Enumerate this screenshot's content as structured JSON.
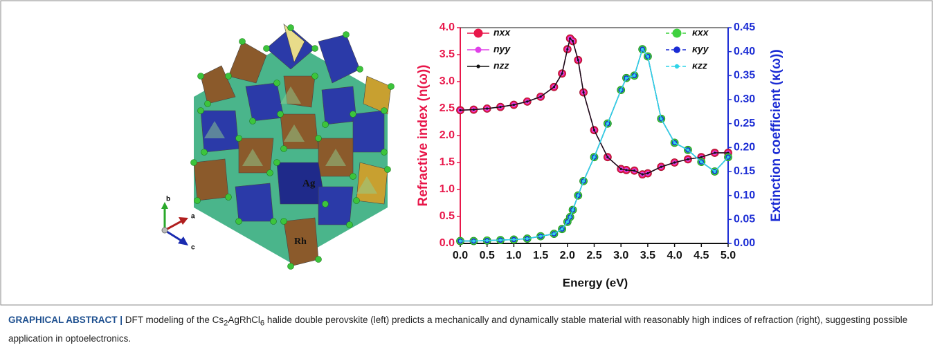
{
  "chart_data": {
    "type": "line",
    "x_label": "Energy (eV)",
    "y_label": "Refractive index (n(ω))",
    "y2_label": "Extinction coefficient (κ(ω))",
    "x": [
      0,
      0.25,
      0.5,
      0.75,
      1,
      1.25,
      1.5,
      1.75,
      1.9,
      2,
      2.05,
      2.1,
      2.2,
      2.3,
      2.5,
      2.75,
      3,
      3.1,
      3.25,
      3.4,
      3.5,
      3.75,
      4,
      4.25,
      4.5,
      4.75,
      5
    ],
    "series": [
      {
        "name": "nxx",
        "color": "#e8174a",
        "values": [
          2.47,
          2.48,
          2.5,
          2.53,
          2.57,
          2.63,
          2.72,
          2.9,
          3.15,
          3.6,
          3.8,
          3.75,
          3.4,
          2.8,
          2.1,
          1.6,
          1.38,
          1.36,
          1.35,
          1.28,
          1.3,
          1.42,
          1.5,
          1.56,
          1.6,
          1.68,
          1.68
        ]
      },
      {
        "name": "nyy",
        "color": "#e040e8",
        "values": [
          2.47,
          2.48,
          2.5,
          2.53,
          2.57,
          2.63,
          2.72,
          2.9,
          3.15,
          3.6,
          3.8,
          3.75,
          3.4,
          2.8,
          2.1,
          1.6,
          1.38,
          1.36,
          1.35,
          1.28,
          1.3,
          1.42,
          1.5,
          1.56,
          1.6,
          1.68,
          1.68
        ]
      },
      {
        "name": "nzz",
        "color": "#111111",
        "values": [
          2.47,
          2.48,
          2.5,
          2.53,
          2.57,
          2.63,
          2.72,
          2.9,
          3.15,
          3.6,
          3.8,
          3.75,
          3.4,
          2.8,
          2.1,
          1.6,
          1.38,
          1.36,
          1.35,
          1.28,
          1.3,
          1.42,
          1.5,
          1.56,
          1.6,
          1.68,
          1.68
        ]
      },
      {
        "name": "κxx",
        "color": "#3fd13f",
        "axis": "y2",
        "values": [
          0.005,
          0.005,
          0.006,
          0.007,
          0.008,
          0.01,
          0.015,
          0.02,
          0.03,
          0.045,
          0.055,
          0.07,
          0.1,
          0.13,
          0.18,
          0.25,
          0.32,
          0.345,
          0.35,
          0.405,
          0.39,
          0.26,
          0.21,
          0.195,
          0.17,
          0.15,
          0.18
        ]
      },
      {
        "name": "κyy",
        "color": "#1a2bd4",
        "axis": "y2",
        "values": [
          0.005,
          0.005,
          0.006,
          0.007,
          0.008,
          0.01,
          0.015,
          0.02,
          0.03,
          0.045,
          0.055,
          0.07,
          0.1,
          0.13,
          0.18,
          0.25,
          0.32,
          0.345,
          0.35,
          0.405,
          0.39,
          0.26,
          0.21,
          0.195,
          0.17,
          0.15,
          0.18
        ]
      },
      {
        "name": "κzz",
        "color": "#2fd4e8",
        "axis": "y2",
        "values": [
          0.005,
          0.005,
          0.006,
          0.007,
          0.008,
          0.01,
          0.015,
          0.02,
          0.03,
          0.045,
          0.055,
          0.07,
          0.1,
          0.13,
          0.18,
          0.25,
          0.32,
          0.345,
          0.35,
          0.405,
          0.39,
          0.26,
          0.21,
          0.195,
          0.17,
          0.15,
          0.18
        ]
      }
    ],
    "xlim": [
      0,
      5
    ],
    "xticks": [
      {
        "value": 0,
        "label": "0.0"
      },
      {
        "value": 0.5,
        "label": "0.5"
      },
      {
        "value": 1,
        "label": "1.0"
      },
      {
        "value": 1.5,
        "label": "1.5"
      },
      {
        "value": 2,
        "label": "2.0"
      },
      {
        "value": 2.5,
        "label": "2.5"
      },
      {
        "value": 3,
        "label": "3.0"
      },
      {
        "value": 3.5,
        "label": "3.5"
      },
      {
        "value": 4,
        "label": "4.0"
      },
      {
        "value": 4.5,
        "label": "4.5"
      },
      {
        "value": 5,
        "label": "5.0"
      }
    ],
    "ylim": [
      0,
      4
    ],
    "yticks": [
      {
        "value": 0,
        "label": "0.0"
      },
      {
        "value": 0.5,
        "label": "0.5"
      },
      {
        "value": 1,
        "label": "1.0"
      },
      {
        "value": 1.5,
        "label": "1.5"
      },
      {
        "value": 2,
        "label": "2.0"
      },
      {
        "value": 2.5,
        "label": "2.5"
      },
      {
        "value": 3,
        "label": "3.0"
      },
      {
        "value": 3.5,
        "label": "3.5"
      },
      {
        "value": 4,
        "label": "4.0"
      }
    ],
    "y2lim": [
      0,
      0.45
    ],
    "y2ticks": [
      {
        "value": 0,
        "label": "0.00"
      },
      {
        "value": 0.05,
        "label": "0.05"
      },
      {
        "value": 0.1,
        "label": "0.10"
      },
      {
        "value": 0.15,
        "label": "0.15"
      },
      {
        "value": 0.2,
        "label": "0.20"
      },
      {
        "value": 0.25,
        "label": "0.25"
      },
      {
        "value": 0.3,
        "label": "0.30"
      },
      {
        "value": 0.35,
        "label": "0.35"
      },
      {
        "value": 0.4,
        "label": "0.40"
      },
      {
        "value": 0.45,
        "label": "0.45"
      }
    ]
  },
  "structure": {
    "labels": [
      "Ag",
      "Rh"
    ],
    "axes": [
      "b",
      "a",
      "c"
    ]
  },
  "caption": {
    "label": "GRAPHICAL ABSTRACT |",
    "parts": [
      " DFT modeling of the Cs",
      "2",
      "AgRhCl",
      "6",
      " halide double perovskite (left) predicts a mechanically and dynamically stable material with reasonably high indices of refraction (right), suggesting possible application in optoelectronics."
    ]
  }
}
